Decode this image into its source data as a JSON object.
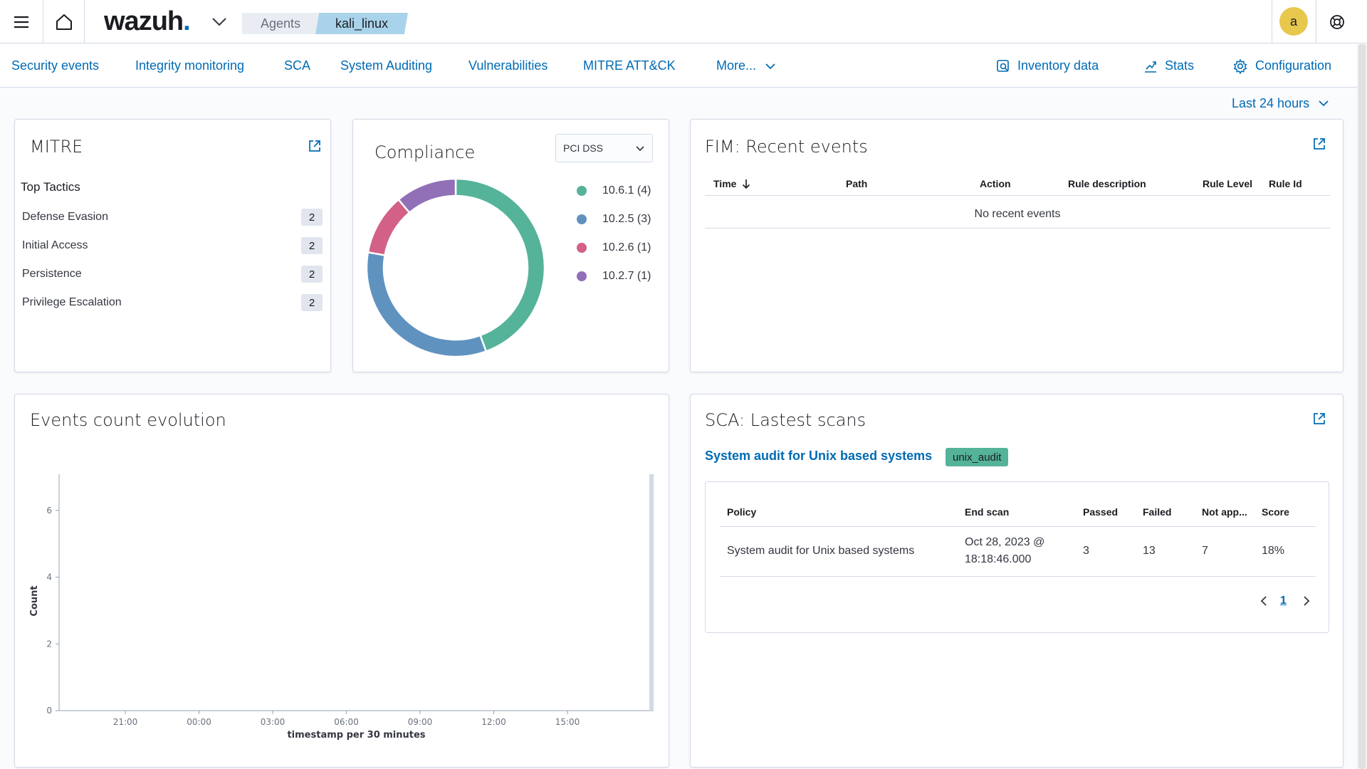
{
  "header": {
    "logo_text": "wazuh",
    "logo_dot": ".",
    "breadcrumbs": [
      "Agents",
      "kali_linux"
    ],
    "avatar_letter": "a"
  },
  "nav": {
    "items": [
      "Security events",
      "Integrity monitoring",
      "SCA",
      "System Auditing",
      "Vulnerabilities",
      "MITRE ATT&CK",
      "More..."
    ],
    "right_items": [
      "Inventory data",
      "Stats",
      "Configuration"
    ]
  },
  "time_picker": "Last 24 hours",
  "mitre": {
    "title": "MITRE",
    "subtitle": "Top Tactics",
    "tactics": [
      {
        "name": "Defense Evasion",
        "count": "2"
      },
      {
        "name": "Initial Access",
        "count": "2"
      },
      {
        "name": "Persistence",
        "count": "2"
      },
      {
        "name": "Privilege Escalation",
        "count": "2"
      }
    ]
  },
  "compliance": {
    "title": "Compliance",
    "select_value": "PCI DSS",
    "legend": [
      {
        "label": "10.6.1 (4)",
        "value": 4,
        "color": "#54b399"
      },
      {
        "label": "10.2.5 (3)",
        "value": 3,
        "color": "#6092c0"
      },
      {
        "label": "10.2.6 (1)",
        "value": 1,
        "color": "#d36086"
      },
      {
        "label": "10.2.7 (1)",
        "value": 1,
        "color": "#9170b8"
      }
    ]
  },
  "fim": {
    "title": "FIM: Recent events",
    "columns": [
      "Time",
      "Path",
      "Action",
      "Rule description",
      "Rule Level",
      "Rule Id"
    ],
    "empty_text": "No recent events"
  },
  "events": {
    "title": "Events count evolution",
    "chart_data": {
      "type": "line",
      "ylabel": "Count",
      "xlabel": "timestamp per 30 minutes",
      "ylim": [
        0,
        7
      ],
      "yticks": [
        "0",
        "2",
        "4",
        "6"
      ],
      "xticks": [
        "21:00",
        "00:00",
        "03:00",
        "06:00",
        "09:00",
        "12:00",
        "15:00"
      ],
      "grid": false
    }
  },
  "sca": {
    "title": "SCA: Lastest scans",
    "policy_link": "System audit for Unix based systems",
    "badge": "unix_audit",
    "columns": [
      "Policy",
      "End scan",
      "Passed",
      "Failed",
      "Not app...",
      "Score"
    ],
    "row": {
      "policy": "System audit for Unix based systems",
      "end_scan_1": "Oct 28, 2023 @",
      "end_scan_2": "18:18:46.000",
      "passed": "3",
      "failed": "13",
      "not_applicable": "7",
      "score": "18%"
    },
    "page": "1"
  }
}
